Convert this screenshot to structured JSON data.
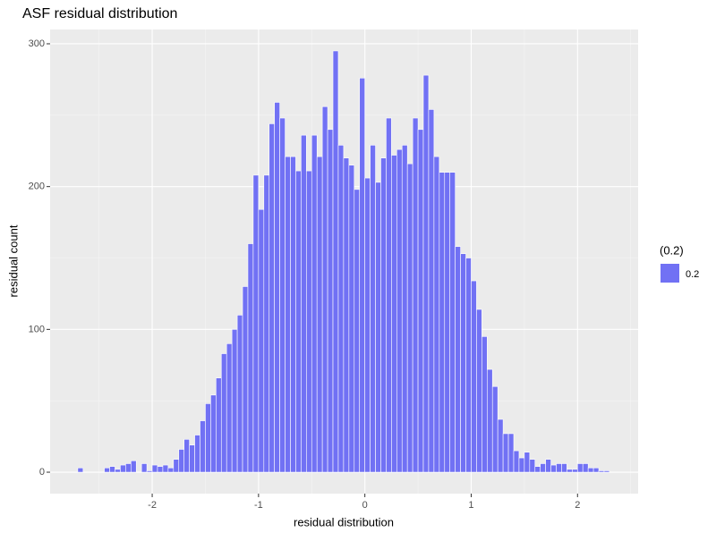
{
  "chart_data": {
    "type": "histogram",
    "title": "ASF residual distribution",
    "x_label": "residual distribution",
    "y_label": "residual count",
    "legend_title": "(0.2)",
    "legend_position": "right",
    "bins": [
      -2.75,
      -2.7,
      -2.65,
      -2.6,
      -2.55,
      -2.5,
      -2.45,
      -2.4,
      -2.35,
      -2.3,
      -2.25,
      -2.2,
      -2.15,
      -2.1,
      -2.05,
      -2.0,
      -1.95,
      -1.9,
      -1.85,
      -1.8,
      -1.75,
      -1.7,
      -1.65,
      -1.6,
      -1.55,
      -1.5,
      -1.45,
      -1.4,
      -1.35,
      -1.3,
      -1.25,
      -1.2,
      -1.15,
      -1.1,
      -1.05,
      -1.0,
      -0.95,
      -0.9,
      -0.85,
      -0.8,
      -0.75,
      -0.7,
      -0.65,
      -0.6,
      -0.55,
      -0.5,
      -0.45,
      -0.4,
      -0.35,
      -0.3,
      -0.25,
      -0.2,
      -0.15,
      -0.1,
      -0.05,
      0.0,
      0.05,
      0.1,
      0.15,
      0.2,
      0.25,
      0.3,
      0.35,
      0.4,
      0.45,
      0.5,
      0.55,
      0.6,
      0.65,
      0.7,
      0.75,
      0.8,
      0.85,
      0.9,
      0.95,
      1.0,
      1.05,
      1.1,
      1.15,
      1.2,
      1.25,
      1.3,
      1.35,
      1.4,
      1.45,
      1.5,
      1.55,
      1.6,
      1.65,
      1.7,
      1.75,
      1.8,
      1.85,
      1.9,
      1.95,
      2.0,
      2.05,
      2.1,
      2.15,
      2.2,
      2.25,
      2.3,
      2.35
    ],
    "series": [
      {
        "name": "0.2",
        "color": "#7171f4",
        "values": [
          0,
          3,
          0,
          0,
          0,
          0,
          3,
          4,
          2,
          5,
          6,
          8,
          0,
          6,
          1,
          5,
          4,
          5,
          3,
          9,
          16,
          23,
          19,
          26,
          36,
          48,
          54,
          66,
          83,
          90,
          100,
          110,
          130,
          160,
          208,
          184,
          208,
          244,
          259,
          248,
          221,
          221,
          211,
          236,
          211,
          236,
          221,
          256,
          240,
          295,
          229,
          220,
          215,
          198,
          276,
          206,
          229,
          203,
          220,
          248,
          222,
          226,
          229,
          216,
          248,
          240,
          278,
          254,
          221,
          210,
          210,
          210,
          158,
          153,
          150,
          134,
          114,
          95,
          72,
          60,
          37,
          27,
          27,
          15,
          10,
          14,
          9,
          4,
          6,
          9,
          5,
          6,
          6,
          2,
          2,
          6,
          6,
          3,
          3,
          1,
          1,
          0
        ]
      }
    ],
    "xlim": [
      -2.96,
      2.57
    ],
    "ylim": [
      -15,
      310
    ],
    "xticks": [
      -2,
      -1,
      0,
      1,
      2
    ],
    "yticks": [
      0,
      100,
      200,
      300
    ],
    "grid": true
  }
}
